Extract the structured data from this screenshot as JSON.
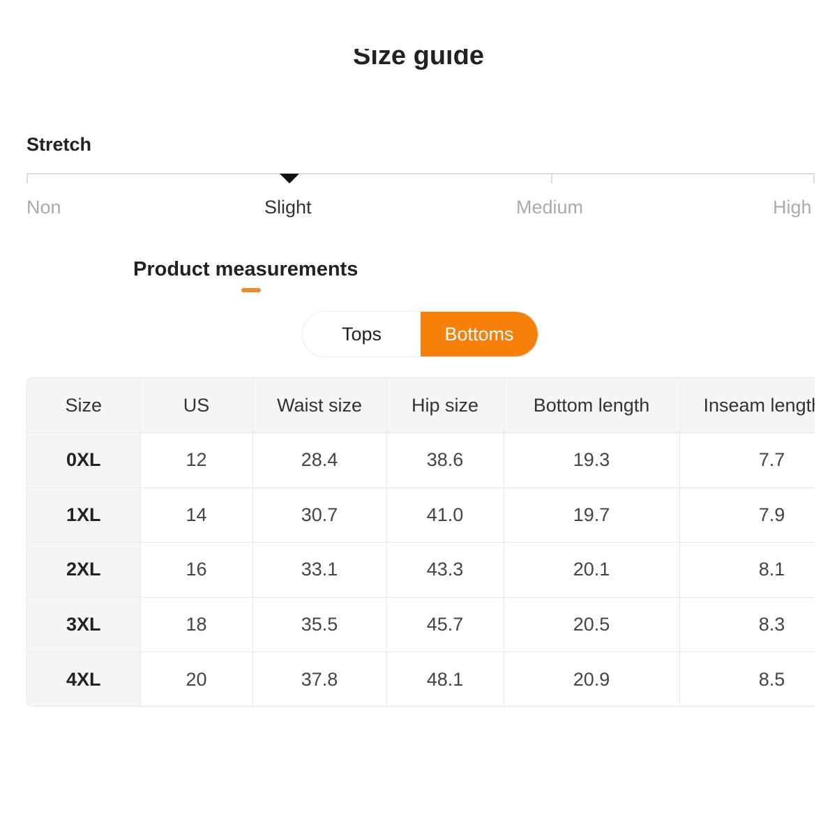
{
  "title": "Size guide",
  "stretch": {
    "label": "Stretch",
    "levels": [
      "Non",
      "Slight",
      "Medium",
      "High"
    ],
    "selected": "Slight"
  },
  "section_title": "Product measurements",
  "toggle": {
    "tops": "Tops",
    "bottoms": "Bottoms",
    "active": "Bottoms",
    "accent": "#f7800a"
  },
  "table": {
    "headers": [
      "Size",
      "US",
      "Waist size",
      "Hip size",
      "Bottom length",
      "Inseam length"
    ],
    "rows": [
      [
        "0XL",
        "12",
        "28.4",
        "38.6",
        "19.3",
        "7.7"
      ],
      [
        "1XL",
        "14",
        "30.7",
        "41.0",
        "19.7",
        "7.9"
      ],
      [
        "2XL",
        "16",
        "33.1",
        "43.3",
        "20.1",
        "8.1"
      ],
      [
        "3XL",
        "18",
        "35.5",
        "45.7",
        "20.5",
        "8.3"
      ],
      [
        "4XL",
        "20",
        "37.8",
        "48.1",
        "20.9",
        "8.5"
      ]
    ]
  }
}
